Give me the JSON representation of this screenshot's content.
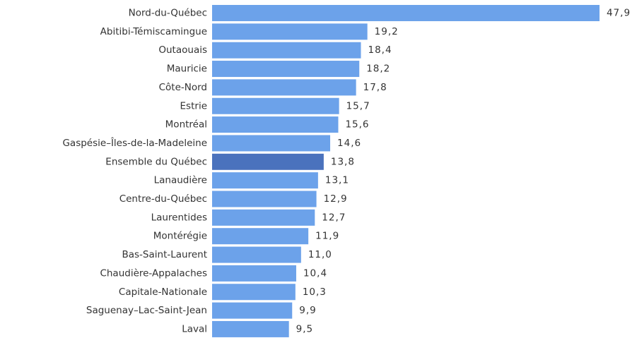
{
  "chart_data": {
    "type": "bar",
    "orientation": "horizontal",
    "categories": [
      "Nord-du-Québec",
      "Abitibi-Témiscamingue",
      "Outaouais",
      "Mauricie",
      "Côte-Nord",
      "Estrie",
      "Montréal",
      "Gaspésie–Îles-de-la-Madeleine",
      "Ensemble du Québec",
      "Lanaudière",
      "Centre-du-Québec",
      "Laurentides",
      "Montérégie",
      "Bas-Saint-Laurent",
      "Chaudière-Appalaches",
      "Capitale-Nationale",
      "Saguenay–Lac-Saint-Jean",
      "Laval"
    ],
    "values": [
      47.9,
      19.2,
      18.4,
      18.2,
      17.8,
      15.7,
      15.6,
      14.6,
      13.8,
      13.1,
      12.9,
      12.7,
      11.9,
      11.0,
      10.4,
      10.3,
      9.9,
      9.5
    ],
    "value_labels": [
      "47,9",
      "19,2",
      "18,4",
      "18,2",
      "17,8",
      "15,7",
      "15,6",
      "14,6",
      "13,8",
      "13,1",
      "12,9",
      "12,7",
      "11,9",
      "11,0",
      "10,4",
      "10,3",
      "9,9",
      "9,5"
    ],
    "colors": [
      "#6ca2ea",
      "#6ca2ea",
      "#6ca2ea",
      "#6ca2ea",
      "#6ca2ea",
      "#6ca2ea",
      "#6ca2ea",
      "#6ca2ea",
      "#4a72bd",
      "#6ca2ea",
      "#6ca2ea",
      "#6ca2ea",
      "#6ca2ea",
      "#6ca2ea",
      "#6ca2ea",
      "#6ca2ea",
      "#6ca2ea",
      "#6ca2ea"
    ]
  }
}
